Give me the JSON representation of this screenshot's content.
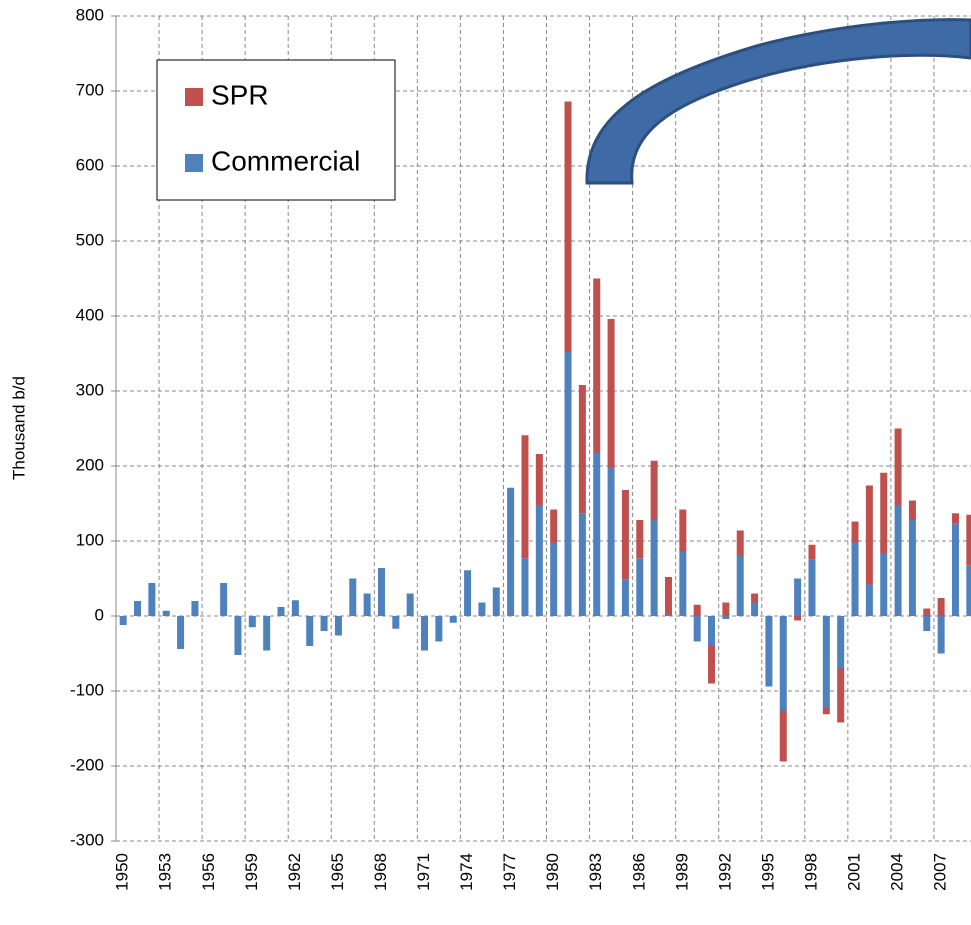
{
  "chart_data": {
    "type": "bar",
    "stacked": true,
    "y_label": "Thousand b/d",
    "categories": [
      "1950",
      null,
      null,
      "1953",
      null,
      null,
      "1956",
      null,
      null,
      "1959",
      null,
      null,
      "1962",
      null,
      null,
      "1965",
      null,
      null,
      "1968",
      null,
      null,
      "1971",
      null,
      null,
      "1974",
      null,
      null,
      "1977",
      null,
      null,
      "1980",
      null,
      null,
      "1983",
      null,
      null,
      "1986",
      null,
      null,
      "1989",
      null,
      null,
      "1992",
      null,
      null,
      "1995",
      null,
      null,
      "1998",
      null,
      null,
      "2001",
      null,
      null,
      "2004",
      null,
      null,
      "2007",
      null,
      null
    ],
    "series": [
      {
        "name": "Commercial",
        "color": "#4f81bd",
        "values": [
          -12,
          20,
          44,
          7,
          -44,
          20,
          0,
          44,
          -52,
          -15,
          -46,
          12,
          21,
          -40,
          -20,
          -26,
          50,
          30,
          64,
          -17,
          30,
          -46,
          -34,
          -9,
          61,
          18,
          38,
          171,
          77,
          148,
          98,
          352,
          137,
          218,
          198,
          49,
          77,
          128,
          2,
          86,
          -34,
          -40,
          -4,
          80,
          18,
          -94,
          -126,
          50,
          75,
          -122,
          -70,
          98,
          42,
          84,
          148,
          128,
          -20,
          -50,
          123,
          67
        ]
      },
      {
        "name": "SPR",
        "color": "#c0504d",
        "values": [
          0,
          0,
          0,
          0,
          0,
          0,
          0,
          0,
          0,
          0,
          0,
          0,
          0,
          0,
          0,
          0,
          0,
          0,
          0,
          0,
          0,
          0,
          0,
          0,
          0,
          0,
          0,
          0,
          164,
          68,
          44,
          334,
          171,
          232,
          198,
          119,
          51,
          79,
          50,
          56,
          15,
          -50,
          18,
          34,
          12,
          0,
          -68,
          -6,
          20,
          -9,
          -72,
          28,
          132,
          107,
          102,
          26,
          10,
          24,
          14,
          68
        ]
      }
    ],
    "ylim": [
      -300,
      800
    ],
    "yticks": [
      -300,
      -200,
      -100,
      0,
      100,
      200,
      300,
      400,
      500,
      600,
      700,
      800
    ],
    "grid": true,
    "legend": "upper left"
  }
}
